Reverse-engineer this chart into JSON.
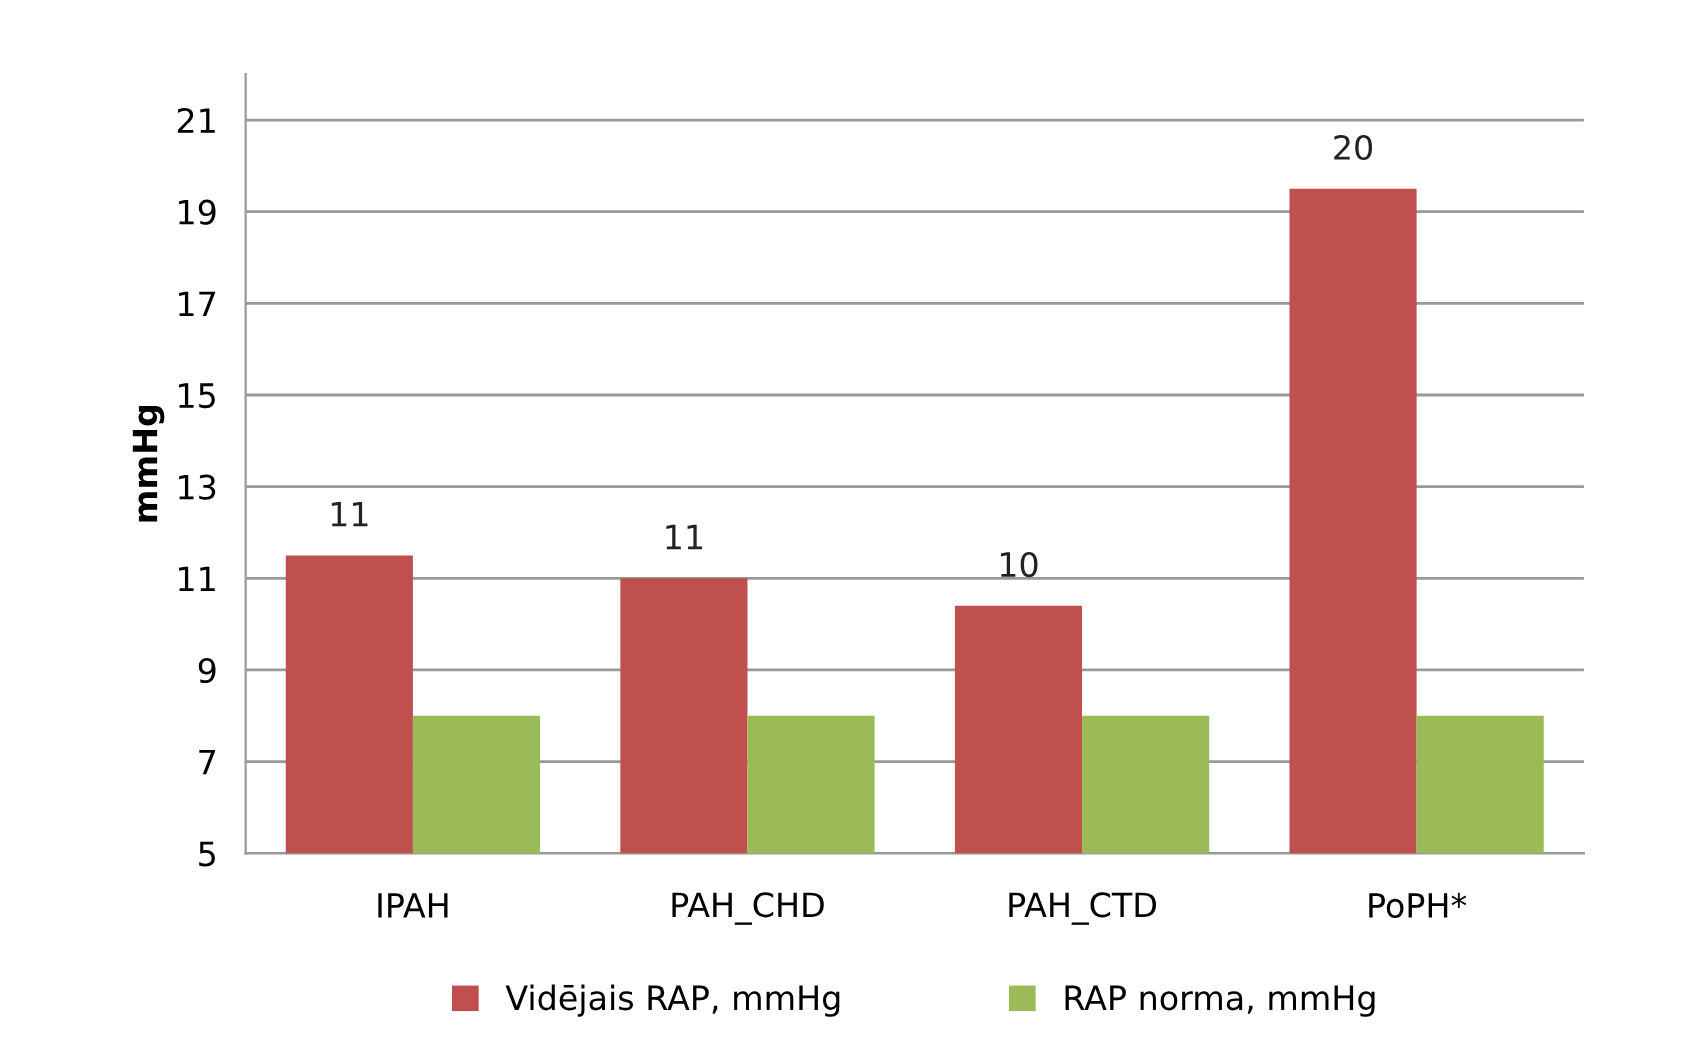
{
  "chart_data": {
    "type": "bar",
    "ylabel": "mmHg",
    "categories": [
      "IPAH",
      "PAH_CHD",
      "PAH_CTD",
      "PoPH*"
    ],
    "series": [
      {
        "name": "Vidējais RAP, mmHg",
        "color": "#c0504d",
        "values": [
          11.5,
          11.0,
          10.4,
          19.5
        ],
        "value_labels": [
          "11",
          "11",
          "10",
          "20"
        ]
      },
      {
        "name": "RAP norma, mmHg",
        "color": "#9bbb59",
        "values": [
          8,
          8,
          8,
          8
        ]
      }
    ],
    "ylim": [
      5,
      22
    ],
    "yticks": [
      5,
      7,
      9,
      11,
      13,
      15,
      17,
      19,
      21
    ],
    "grid": "y",
    "legend": "bottom"
  }
}
